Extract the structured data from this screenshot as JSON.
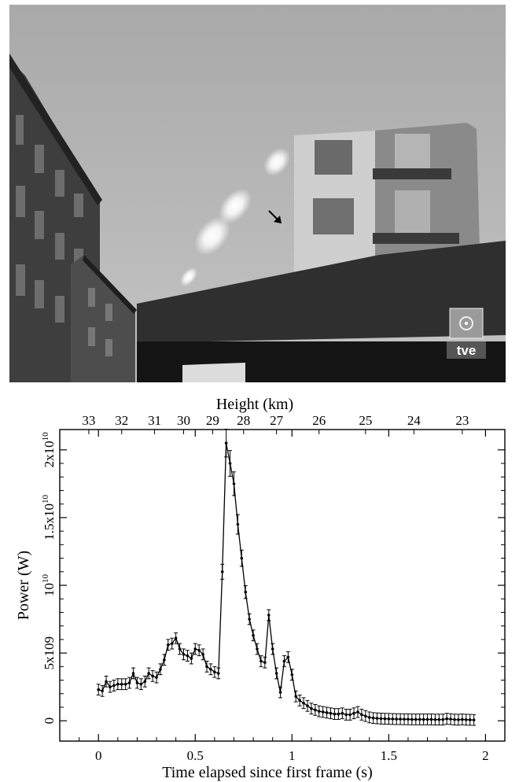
{
  "photo": {
    "logo_text": "tve"
  },
  "chart_data": {
    "type": "line",
    "xlabel": "Time elapsed since first frame (s)",
    "ylabel": "Power (W)",
    "x2label": "Height (km)",
    "xlim": [
      -0.2,
      2.1
    ],
    "ylim": [
      -1500000000.0,
      21500000000.0
    ],
    "x_ticks": [
      {
        "value": 0,
        "label": "0"
      },
      {
        "value": 0.5,
        "label": "0.5"
      },
      {
        "value": 1,
        "label": "1"
      },
      {
        "value": 1.5,
        "label": "1.5"
      },
      {
        "value": 2,
        "label": "2"
      }
    ],
    "y_ticks": [
      {
        "value": 0,
        "base": "0",
        "exp": ""
      },
      {
        "value": 5000000000.0,
        "base": "5x109",
        "exp": ""
      },
      {
        "value": 10000000000.0,
        "base": "10",
        "exp": "10"
      },
      {
        "value": 15000000000.0,
        "base": "1.5x10",
        "exp": "10"
      },
      {
        "value": 20000000000.0,
        "base": "2x10",
        "exp": "10"
      }
    ],
    "height_ticks": [
      {
        "t": -0.05,
        "label": "33"
      },
      {
        "t": 0.12,
        "label": "32"
      },
      {
        "t": 0.29,
        "label": "31"
      },
      {
        "t": 0.44,
        "label": "30"
      },
      {
        "t": 0.59,
        "label": "29"
      },
      {
        "t": 0.75,
        "label": "28"
      },
      {
        "t": 0.92,
        "label": "27"
      },
      {
        "t": 1.14,
        "label": "26"
      },
      {
        "t": 1.38,
        "label": "25"
      },
      {
        "t": 1.63,
        "label": "24"
      },
      {
        "t": 1.88,
        "label": "23"
      }
    ],
    "grid": false,
    "series": [
      {
        "x": [
          0,
          0.02,
          0.04,
          0.06,
          0.08,
          0.1,
          0.12,
          0.14,
          0.16,
          0.18,
          0.2,
          0.22,
          0.24,
          0.26,
          0.28,
          0.3,
          0.32,
          0.34,
          0.36,
          0.38,
          0.4,
          0.42,
          0.44,
          0.46,
          0.48,
          0.5,
          0.52,
          0.54,
          0.56,
          0.58,
          0.6,
          0.62,
          0.64,
          0.66,
          0.68,
          0.7,
          0.72,
          0.74,
          0.76,
          0.78,
          0.8,
          0.82,
          0.84,
          0.86,
          0.88,
          0.9,
          0.92,
          0.94,
          0.96,
          0.98,
          1.0,
          1.02,
          1.04,
          1.06,
          1.08,
          1.1,
          1.12,
          1.14,
          1.16,
          1.18,
          1.2,
          1.22,
          1.24,
          1.26,
          1.28,
          1.3,
          1.32,
          1.34,
          1.36,
          1.38,
          1.4,
          1.42,
          1.44,
          1.46,
          1.48,
          1.5,
          1.52,
          1.54,
          1.56,
          1.58,
          1.6,
          1.62,
          1.64,
          1.66,
          1.68,
          1.7,
          1.72,
          1.74,
          1.76,
          1.78,
          1.8,
          1.82,
          1.84,
          1.86,
          1.88,
          1.9,
          1.92,
          1.94
        ],
        "y": [
          2300000000.0,
          2200000000.0,
          2900000000.0,
          2500000000.0,
          2600000000.0,
          2700000000.0,
          2700000000.0,
          2700000000.0,
          2800000000.0,
          3500000000.0,
          2800000000.0,
          2700000000.0,
          2900000000.0,
          3500000000.0,
          3300000000.0,
          3200000000.0,
          3800000000.0,
          4500000000.0,
          5600000000.0,
          5700000000.0,
          6100000000.0,
          5300000000.0,
          4900000000.0,
          4800000000.0,
          4600000000.0,
          5300000000.0,
          5200000000.0,
          4900000000.0,
          4000000000.0,
          3800000000.0,
          3600000000.0,
          3500000000.0,
          11000000000.0,
          20500000000.0,
          19000000000.0,
          17500000000.0,
          14500000000.0,
          12000000000.0,
          9500000000.0,
          7500000000.0,
          6300000000.0,
          5300000000.0,
          4400000000.0,
          4300000000.0,
          7800000000.0,
          5300000000.0,
          3500000000.0,
          2100000000.0,
          4400000000.0,
          4700000000.0,
          3400000000.0,
          1800000000.0,
          1500000000.0,
          1300000000.0,
          1100000000.0,
          900000000.0,
          800000000.0,
          700000000.0,
          650000000.0,
          600000000.0,
          550000000.0,
          500000000.0,
          500000000.0,
          550000000.0,
          450000000.0,
          450000000.0,
          550000000.0,
          650000000.0,
          450000000.0,
          350000000.0,
          250000000.0,
          200000000.0,
          180000000.0,
          160000000.0,
          150000000.0,
          140000000.0,
          130000000.0,
          120000000.0,
          120000000.0,
          110000000.0,
          110000000.0,
          100000000.0,
          100000000.0,
          100000000.0,
          100000000.0,
          100000000.0,
          100000000.0,
          90000000.0,
          90000000.0,
          90000000.0,
          150000000.0,
          120000000.0,
          90000000.0,
          80000000.0,
          100000000.0,
          80000000.0,
          70000000.0,
          60000000.0
        ]
      }
    ]
  }
}
